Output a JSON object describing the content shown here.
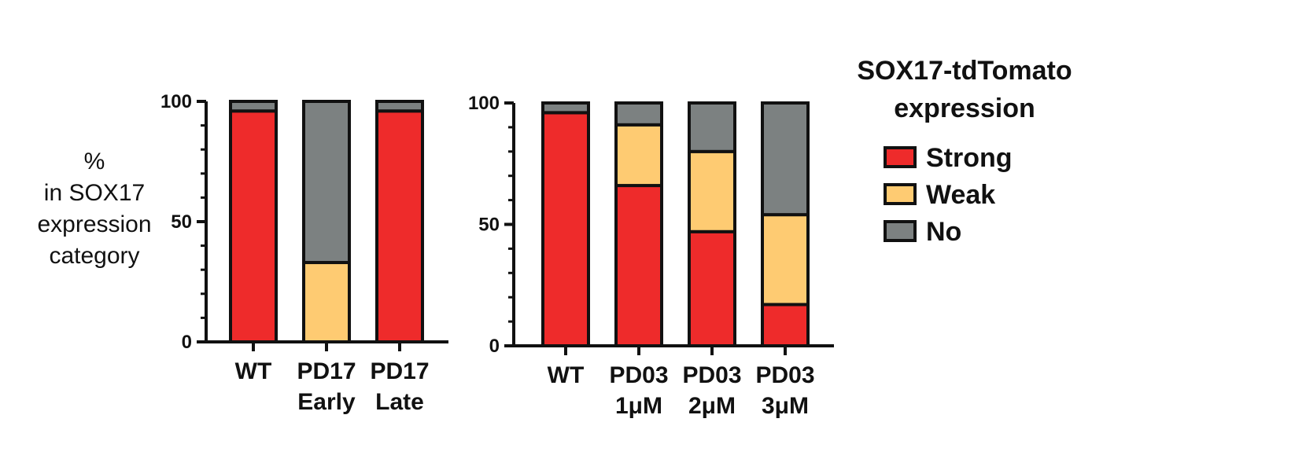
{
  "y_axis_label_lines": [
    "%",
    "in SOX17",
    "expression",
    "category"
  ],
  "colors": {
    "Strong": "#ee2b2b",
    "Weak": "#fecb72",
    "No": "#7c8181",
    "outline": "#111111"
  },
  "legend": {
    "title_lines": [
      "SOX17-tdTomato",
      "expression"
    ],
    "items": [
      {
        "label": "Strong",
        "color": "#ee2b2b"
      },
      {
        "label": "Weak",
        "color": "#fecb72"
      },
      {
        "label": "No",
        "color": "#7c8181"
      }
    ]
  },
  "chart_data": [
    {
      "type": "bar",
      "stacked": true,
      "ylabel": "% in SOX17 expression category",
      "ylim": [
        0,
        100
      ],
      "yticks": [
        0,
        50,
        100
      ],
      "categories": [
        [
          "WT"
        ],
        [
          "PD17",
          "Early"
        ],
        [
          "PD17",
          "Late"
        ]
      ],
      "series": [
        {
          "name": "Strong",
          "values": [
            96,
            0,
            96
          ]
        },
        {
          "name": "Weak",
          "values": [
            0,
            33,
            0
          ]
        },
        {
          "name": "No",
          "values": [
            4,
            67,
            4
          ]
        }
      ]
    },
    {
      "type": "bar",
      "stacked": true,
      "ylim": [
        0,
        100
      ],
      "yticks": [
        0,
        50,
        100
      ],
      "categories": [
        [
          "WT"
        ],
        [
          "PD03",
          "1μM"
        ],
        [
          "PD03",
          "2μM"
        ],
        [
          "PD03",
          "3μM"
        ]
      ],
      "series": [
        {
          "name": "Strong",
          "values": [
            96,
            66,
            47,
            17
          ]
        },
        {
          "name": "Weak",
          "values": [
            0,
            25,
            33,
            37
          ]
        },
        {
          "name": "No",
          "values": [
            4,
            9,
            20,
            46
          ]
        }
      ]
    }
  ]
}
